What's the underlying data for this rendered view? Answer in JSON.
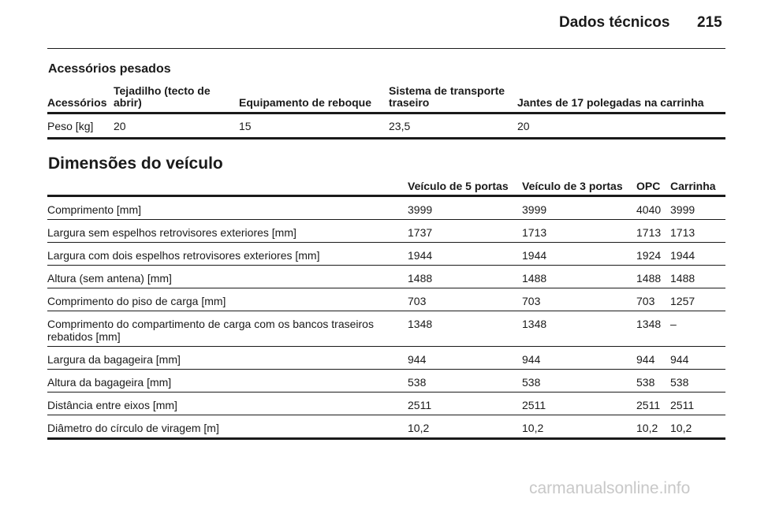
{
  "header": {
    "title": "Dados técnicos",
    "page_number": "215"
  },
  "accessories": {
    "title": "Acessórios pesados",
    "columns": [
      "Acessórios",
      "Tejadilho (tecto de abrir)",
      "Equipamento de reboque",
      "Sistema de transporte traseiro",
      "Jantes de 17 polegadas na carrinha"
    ],
    "rows": [
      [
        "Peso [kg]",
        "20",
        "15",
        "23,5",
        "20"
      ]
    ]
  },
  "dimensions": {
    "title": "Dimensões do veículo",
    "columns": [
      "",
      "Veículo de 5 portas",
      "Veículo de 3 portas",
      "OPC",
      "Carrinha"
    ],
    "rows": [
      [
        "Comprimento [mm]",
        "3999",
        "3999",
        "4040",
        "3999"
      ],
      [
        "Largura sem espelhos retrovisores exteriores [mm]",
        "1737",
        "1713",
        "1713",
        "1713"
      ],
      [
        "Largura com dois espelhos retrovisores exteriores [mm]",
        "1944",
        "1944",
        "1924",
        "1944"
      ],
      [
        "Altura (sem antena) [mm]",
        "1488",
        "1488",
        "1488",
        "1488"
      ],
      [
        "Comprimento do piso de carga [mm]",
        "703",
        "703",
        "703",
        "1257"
      ],
      [
        "Comprimento do compartimento de carga com os bancos traseiros rebatidos [mm]",
        "1348",
        "1348",
        "1348",
        "–"
      ],
      [
        "Largura da bagageira [mm]",
        "944",
        "944",
        "944",
        "944"
      ],
      [
        "Altura da bagageira [mm]",
        "538",
        "538",
        "538",
        "538"
      ],
      [
        "Distância entre eixos [mm]",
        "2511",
        "2511",
        "2511",
        "2511"
      ],
      [
        "Diâmetro do círculo de viragem [m]",
        "10,2",
        "10,2",
        "10,2",
        "10,2"
      ]
    ]
  },
  "watermark": "carmanualsonline.info"
}
